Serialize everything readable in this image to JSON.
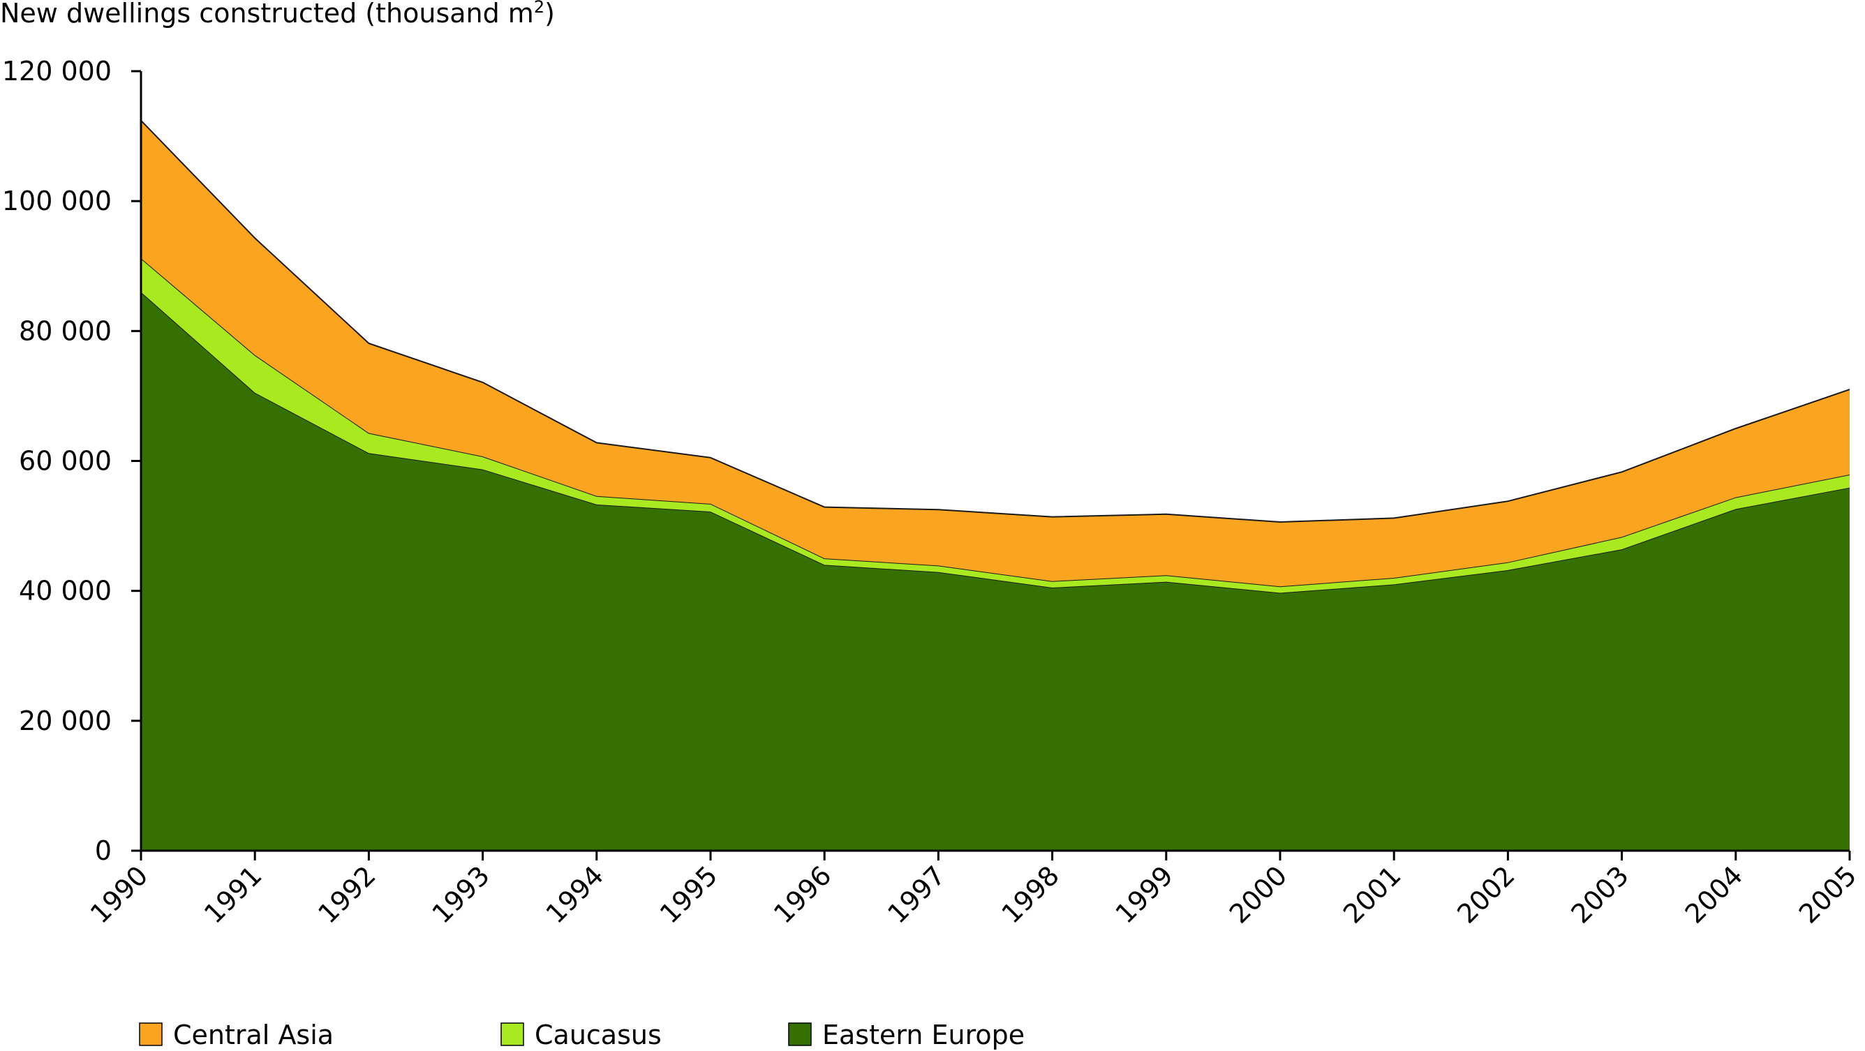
{
  "chart_data": {
    "type": "area",
    "stacked": true,
    "ylabel": "New dwellings constructed (thousand m",
    "ylabel_superscript": "2",
    "ylabel_close": ")",
    "x": [
      "1990",
      "1991",
      "1992",
      "1993",
      "1994",
      "1995",
      "1996",
      "1997",
      "1998",
      "1999",
      "2000",
      "2001",
      "2002",
      "2003",
      "2004",
      "2005"
    ],
    "ylim": [
      0,
      120000
    ],
    "yticks": [
      0,
      20000,
      40000,
      60000,
      80000,
      100000,
      120000
    ],
    "ytick_labels": [
      "0",
      "20 000",
      "40 000",
      "60 000",
      "80 000",
      "100 000",
      "120 000"
    ],
    "grid": false,
    "legend_position": "bottom",
    "series": [
      {
        "name": "Eastern Europe",
        "color": "#367000",
        "values": [
          86000,
          70500,
          61200,
          58700,
          53300,
          52200,
          44000,
          42900,
          40500,
          41400,
          39700,
          41000,
          43200,
          46400,
          52600,
          55900
        ]
      },
      {
        "name": "Caucasus",
        "color": "#a8ea1f",
        "values": [
          5200,
          5800,
          3100,
          2000,
          1300,
          1200,
          1000,
          1000,
          1000,
          1000,
          1000,
          1000,
          1200,
          1900,
          1800,
          2000
        ]
      },
      {
        "name": "Central Asia",
        "color": "#fba41f",
        "values": [
          21200,
          18000,
          13800,
          11400,
          8200,
          7100,
          7900,
          8600,
          9900,
          9400,
          9900,
          9200,
          9400,
          10000,
          10600,
          13100
        ]
      }
    ],
    "legend_order": [
      "Central Asia",
      "Caucasus",
      "Eastern Europe"
    ]
  }
}
